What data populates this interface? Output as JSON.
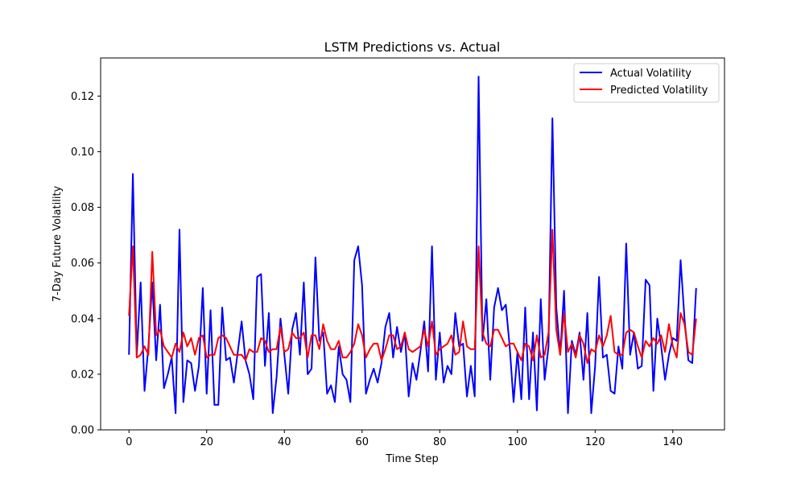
{
  "chart_data": {
    "type": "line",
    "title": "LSTM Predictions vs. Actual",
    "xlabel": "Time Step",
    "ylabel": "7-Day Future Volatility",
    "xlim": [
      -7.3,
      153.3
    ],
    "ylim": [
      0.0,
      0.1337
    ],
    "xticks": [
      0,
      20,
      40,
      60,
      80,
      100,
      120,
      140
    ],
    "xtick_labels": [
      "0",
      "20",
      "40",
      "60",
      "80",
      "100",
      "120",
      "140"
    ],
    "yticks": [
      0.0,
      0.02,
      0.04,
      0.06,
      0.08,
      0.1,
      0.12
    ],
    "ytick_labels": [
      "0.00",
      "0.02",
      "0.04",
      "0.06",
      "0.08",
      "0.10",
      "0.12"
    ],
    "grid": false,
    "legend_position": "top-right",
    "series": [
      {
        "name": "Actual Volatility",
        "color": "#0000ff",
        "values": [
          0.027,
          0.092,
          0.027,
          0.053,
          0.014,
          0.03,
          0.053,
          0.025,
          0.045,
          0.015,
          0.02,
          0.026,
          0.006,
          0.072,
          0.01,
          0.025,
          0.024,
          0.014,
          0.023,
          0.051,
          0.013,
          0.043,
          0.009,
          0.009,
          0.044,
          0.025,
          0.026,
          0.017,
          0.028,
          0.039,
          0.025,
          0.02,
          0.011,
          0.055,
          0.056,
          0.023,
          0.042,
          0.006,
          0.019,
          0.04,
          0.027,
          0.013,
          0.036,
          0.042,
          0.027,
          0.053,
          0.02,
          0.022,
          0.062,
          0.032,
          0.035,
          0.013,
          0.016,
          0.01,
          0.03,
          0.02,
          0.018,
          0.01,
          0.061,
          0.066,
          0.052,
          0.013,
          0.018,
          0.022,
          0.017,
          0.024,
          0.037,
          0.042,
          0.026,
          0.037,
          0.028,
          0.035,
          0.012,
          0.024,
          0.018,
          0.028,
          0.039,
          0.021,
          0.066,
          0.018,
          0.035,
          0.017,
          0.023,
          0.02,
          0.042,
          0.03,
          0.031,
          0.012,
          0.023,
          0.012,
          0.127,
          0.032,
          0.047,
          0.018,
          0.044,
          0.051,
          0.043,
          0.045,
          0.03,
          0.01,
          0.028,
          0.011,
          0.044,
          0.011,
          0.035,
          0.007,
          0.047,
          0.018,
          0.03,
          0.112,
          0.044,
          0.027,
          0.05,
          0.006,
          0.032,
          0.027,
          0.035,
          0.018,
          0.042,
          0.006,
          0.023,
          0.055,
          0.026,
          0.027,
          0.014,
          0.013,
          0.03,
          0.022,
          0.067,
          0.027,
          0.035,
          0.022,
          0.023,
          0.054,
          0.052,
          0.014,
          0.04,
          0.03,
          0.018,
          0.027,
          0.033,
          0.032,
          0.061,
          0.04,
          0.025,
          0.024,
          0.051
        ]
      },
      {
        "name": "Predicted Volatility",
        "color": "#ff0000",
        "values": [
          0.041,
          0.066,
          0.026,
          0.027,
          0.03,
          0.027,
          0.064,
          0.034,
          0.036,
          0.03,
          0.028,
          0.026,
          0.031,
          0.028,
          0.035,
          0.03,
          0.033,
          0.027,
          0.033,
          0.034,
          0.026,
          0.027,
          0.027,
          0.033,
          0.034,
          0.033,
          0.03,
          0.027,
          0.027,
          0.027,
          0.025,
          0.029,
          0.028,
          0.028,
          0.033,
          0.032,
          0.028,
          0.029,
          0.029,
          0.037,
          0.028,
          0.029,
          0.035,
          0.033,
          0.033,
          0.035,
          0.026,
          0.034,
          0.034,
          0.029,
          0.038,
          0.032,
          0.029,
          0.029,
          0.032,
          0.026,
          0.026,
          0.028,
          0.031,
          0.038,
          0.034,
          0.026,
          0.029,
          0.031,
          0.031,
          0.025,
          0.029,
          0.034,
          0.034,
          0.029,
          0.03,
          0.035,
          0.029,
          0.028,
          0.029,
          0.03,
          0.036,
          0.03,
          0.039,
          0.027,
          0.029,
          0.03,
          0.031,
          0.034,
          0.027,
          0.028,
          0.039,
          0.03,
          0.029,
          0.029,
          0.066,
          0.035,
          0.031,
          0.03,
          0.036,
          0.036,
          0.033,
          0.03,
          0.031,
          0.031,
          0.028,
          0.025,
          0.031,
          0.03,
          0.025,
          0.034,
          0.026,
          0.027,
          0.035,
          0.072,
          0.036,
          0.027,
          0.042,
          0.028,
          0.031,
          0.026,
          0.034,
          0.031,
          0.024,
          0.029,
          0.028,
          0.034,
          0.03,
          0.034,
          0.041,
          0.028,
          0.027,
          0.027,
          0.035,
          0.036,
          0.035,
          0.03,
          0.026,
          0.032,
          0.03,
          0.033,
          0.031,
          0.034,
          0.028,
          0.038,
          0.03,
          0.026,
          0.042,
          0.038,
          0.028,
          0.027,
          0.04
        ]
      }
    ]
  }
}
